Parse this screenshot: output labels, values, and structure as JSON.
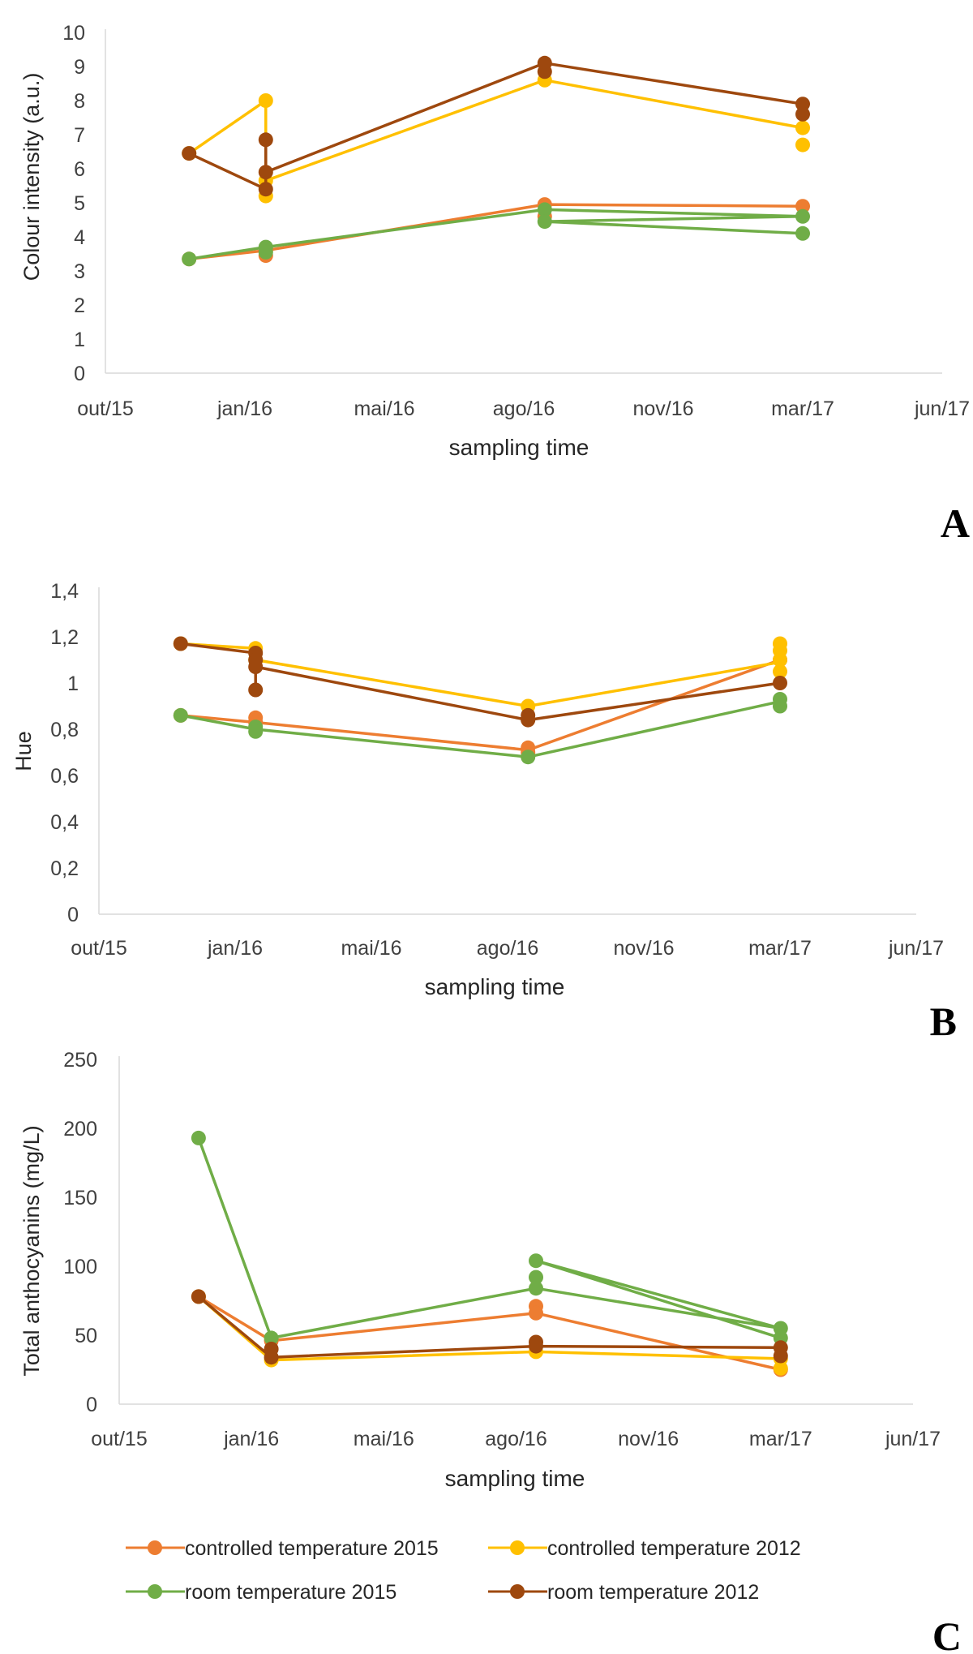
{
  "figure": {
    "panel_labels": [
      "A",
      "B",
      "C"
    ]
  },
  "legend": {
    "entries": [
      {
        "label": "controlled temperature 2015",
        "color": "#ED7D31"
      },
      {
        "label": "controlled temperature  2012",
        "color": "#FFC000"
      },
      {
        "label": "room temperature 2015",
        "color": "#70AD47"
      },
      {
        "label": "room temperature  2012",
        "color": "#9E480E"
      }
    ]
  },
  "chart_data": [
    {
      "type": "line",
      "panel": "A",
      "title": "",
      "xlabel": "sampling time",
      "ylabel": "Colour intensity (a.u.)",
      "x_tick_labels": [
        "out/15",
        "jan/16",
        "mai/16",
        "ago/16",
        "nov/16",
        "mar/17",
        "jun/17"
      ],
      "y_tick_labels": [
        "0",
        "1",
        "2",
        "3",
        "4",
        "5",
        "6",
        "7",
        "8",
        "9",
        "10"
      ],
      "xlim": [
        0,
        600
      ],
      "ylim": [
        0,
        10
      ],
      "grid": false,
      "series": [
        {
          "name": "controlled temperature 2015",
          "color": "#ED7D31",
          "line": [
            [
              60,
              3.35
            ],
            [
              115,
              3.6
            ],
            [
              315,
              4.95
            ],
            [
              500,
              4.9
            ]
          ],
          "points": [
            [
              60,
              3.35
            ],
            [
              115,
              3.45
            ],
            [
              115,
              3.6
            ],
            [
              315,
              4.95
            ],
            [
              315,
              4.6
            ],
            [
              500,
              4.9
            ]
          ]
        },
        {
          "name": "controlled temperature  2012",
          "color": "#FFC000",
          "line": [
            [
              60,
              6.45
            ],
            [
              115,
              8.0
            ],
            [
              115,
              5.65
            ],
            [
              315,
              8.6
            ],
            [
              500,
              7.2
            ]
          ],
          "points": [
            [
              60,
              6.45
            ],
            [
              115,
              8.0
            ],
            [
              115,
              5.2
            ],
            [
              115,
              5.65
            ],
            [
              315,
              8.6
            ],
            [
              500,
              7.2
            ],
            [
              500,
              6.7
            ]
          ]
        },
        {
          "name": "room temperature 2015",
          "color": "#70AD47",
          "line": [
            [
              60,
              3.35
            ],
            [
              115,
              3.7
            ],
            [
              315,
              4.8
            ],
            [
              500,
              4.6
            ],
            [
              315,
              4.45
            ],
            [
              500,
              4.1
            ]
          ],
          "points": [
            [
              60,
              3.35
            ],
            [
              115,
              3.7
            ],
            [
              115,
              3.55
            ],
            [
              315,
              4.8
            ],
            [
              315,
              4.45
            ],
            [
              500,
              4.6
            ],
            [
              500,
              4.1
            ]
          ]
        },
        {
          "name": "room temperature  2012",
          "color": "#9E480E",
          "line": [
            [
              60,
              6.45
            ],
            [
              115,
              5.4
            ],
            [
              115,
              6.85
            ],
            [
              115,
              5.9
            ],
            [
              315,
              9.1
            ],
            [
              500,
              7.9
            ]
          ],
          "points": [
            [
              60,
              6.45
            ],
            [
              115,
              5.4
            ],
            [
              115,
              5.9
            ],
            [
              115,
              6.85
            ],
            [
              315,
              8.85
            ],
            [
              315,
              9.1
            ],
            [
              500,
              7.9
            ],
            [
              500,
              7.6
            ]
          ]
        }
      ]
    },
    {
      "type": "line",
      "panel": "B",
      "title": "",
      "xlabel": "sampling time",
      "ylabel": "Hue",
      "x_tick_labels": [
        "out/15",
        "jan/16",
        "mai/16",
        "ago/16",
        "nov/16",
        "mar/17",
        "jun/17"
      ],
      "y_tick_labels": [
        "0",
        "0,2",
        "0,4",
        "0,6",
        "0,8",
        "1",
        "1,2",
        "1,4"
      ],
      "xlim": [
        0,
        600
      ],
      "ylim": [
        0,
        1.4
      ],
      "grid": false,
      "series": [
        {
          "name": "controlled temperature 2015",
          "color": "#ED7D31",
          "line": [
            [
              60,
              0.86
            ],
            [
              115,
              0.83
            ],
            [
              315,
              0.71
            ],
            [
              500,
              1.1
            ]
          ],
          "points": [
            [
              60,
              0.86
            ],
            [
              115,
              0.85
            ],
            [
              115,
              0.83
            ],
            [
              315,
              0.72
            ],
            [
              315,
              0.7
            ],
            [
              500,
              1.1
            ]
          ]
        },
        {
          "name": "controlled temperature  2012",
          "color": "#FFC000",
          "line": [
            [
              60,
              1.17
            ],
            [
              115,
              1.15
            ],
            [
              115,
              1.1
            ],
            [
              315,
              0.9
            ],
            [
              500,
              1.09
            ]
          ],
          "points": [
            [
              60,
              1.17
            ],
            [
              115,
              1.15
            ],
            [
              115,
              1.1
            ],
            [
              315,
              0.9
            ],
            [
              500,
              1.17
            ],
            [
              500,
              1.14
            ],
            [
              500,
              1.1
            ],
            [
              500,
              1.05
            ]
          ]
        },
        {
          "name": "room temperature 2015",
          "color": "#70AD47",
          "line": [
            [
              60,
              0.86
            ],
            [
              115,
              0.8
            ],
            [
              315,
              0.68
            ],
            [
              500,
              0.92
            ]
          ],
          "points": [
            [
              60,
              0.86
            ],
            [
              115,
              0.81
            ],
            [
              115,
              0.79
            ],
            [
              315,
              0.68
            ],
            [
              500,
              0.93
            ],
            [
              500,
              0.9
            ]
          ]
        },
        {
          "name": "room temperature  2012",
          "color": "#9E480E",
          "line": [
            [
              60,
              1.17
            ],
            [
              115,
              1.13
            ],
            [
              115,
              0.97
            ],
            [
              115,
              1.07
            ],
            [
              315,
              0.84
            ],
            [
              500,
              1.0
            ]
          ],
          "points": [
            [
              60,
              1.17
            ],
            [
              115,
              1.13
            ],
            [
              115,
              1.1
            ],
            [
              115,
              1.07
            ],
            [
              115,
              0.97
            ],
            [
              315,
              0.86
            ],
            [
              315,
              0.84
            ],
            [
              500,
              1.0
            ]
          ]
        }
      ]
    },
    {
      "type": "line",
      "panel": "C",
      "title": "",
      "xlabel": "sampling time",
      "ylabel": "Total anthocyanins (mg/L)",
      "x_tick_labels": [
        "out/15",
        "jan/16",
        "mai/16",
        "ago/16",
        "nov/16",
        "mar/17",
        "jun/17"
      ],
      "y_tick_labels": [
        "0",
        "50",
        "100",
        "150",
        "200",
        "250"
      ],
      "xlim": [
        0,
        600
      ],
      "ylim": [
        0,
        250
      ],
      "grid": false,
      "series": [
        {
          "name": "controlled temperature 2015",
          "color": "#ED7D31",
          "line": [
            [
              60,
              78
            ],
            [
              115,
              46
            ],
            [
              315,
              66
            ],
            [
              500,
              25
            ]
          ],
          "points": [
            [
              60,
              78
            ],
            [
              115,
              46
            ],
            [
              315,
              71
            ],
            [
              315,
              66
            ],
            [
              500,
              25
            ]
          ]
        },
        {
          "name": "controlled temperature  2012",
          "color": "#FFC000",
          "line": [
            [
              60,
              78
            ],
            [
              115,
              32
            ],
            [
              315,
              38
            ],
            [
              500,
              33
            ]
          ],
          "points": [
            [
              60,
              78
            ],
            [
              115,
              32
            ],
            [
              315,
              38
            ],
            [
              500,
              33
            ],
            [
              500,
              26
            ]
          ]
        },
        {
          "name": "room temperature 2015",
          "color": "#70AD47",
          "line": [
            [
              60,
              193
            ],
            [
              115,
              48
            ],
            [
              315,
              84
            ],
            [
              500,
              55
            ],
            [
              315,
              104
            ],
            [
              500,
              48
            ]
          ],
          "points": [
            [
              60,
              193
            ],
            [
              115,
              48
            ],
            [
              315,
              104
            ],
            [
              315,
              92
            ],
            [
              315,
              84
            ],
            [
              500,
              55
            ],
            [
              500,
              48
            ]
          ]
        },
        {
          "name": "room temperature  2012",
          "color": "#9E480E",
          "line": [
            [
              60,
              78
            ],
            [
              115,
              34
            ],
            [
              315,
              42
            ],
            [
              500,
              41
            ]
          ],
          "points": [
            [
              60,
              78
            ],
            [
              115,
              34
            ],
            [
              115,
              40
            ],
            [
              315,
              42
            ],
            [
              315,
              45
            ],
            [
              500,
              41
            ],
            [
              500,
              35
            ]
          ]
        }
      ]
    }
  ]
}
